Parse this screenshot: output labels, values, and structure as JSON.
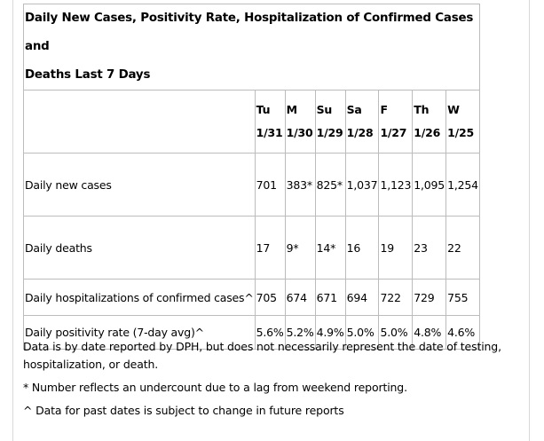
{
  "table": {
    "title_line1": "Daily New Cases, Positivity Rate, Hospitalization of Confirmed Cases and",
    "title_line2": "Deaths Last 7 Days",
    "columns": [
      {
        "day": "Tu",
        "date": "1/31"
      },
      {
        "day": "M",
        "date": "1/30"
      },
      {
        "day": "Su",
        "date": "1/29"
      },
      {
        "day": "Sa",
        "date": "1/28"
      },
      {
        "day": "F",
        "date": "1/27"
      },
      {
        "day": "Th",
        "date": "1/26"
      },
      {
        "day": "W",
        "date": "1/25"
      }
    ],
    "rows": [
      {
        "label": "Daily new cases",
        "values": [
          "701",
          "383*",
          "825*",
          "1,037",
          "1,123",
          "1,095",
          "1,254"
        ]
      },
      {
        "label": "Daily deaths",
        "values": [
          "17",
          "9*",
          "14*",
          "16",
          "19",
          "23",
          "22"
        ]
      },
      {
        "label": "Daily hospitalizations of confirmed cases^",
        "values": [
          "705",
          "674",
          "671",
          "694",
          "722",
          "729",
          "755"
        ]
      },
      {
        "label": "Daily positivity rate (7-day avg)^",
        "values": [
          "5.6%",
          "5.2%",
          "4.9%",
          "5.0%",
          "5.0%",
          "4.8%",
          "4.6%"
        ]
      }
    ]
  },
  "notes": {
    "source": "Data is by date reported by DPH, but does not necessarily represent the date of testing, hospitalization, or death.",
    "undercount": "* Number reflects an undercount due to a lag from weekend reporting.",
    "past_dates": "^ Data for past dates is subject to change in future reports"
  }
}
